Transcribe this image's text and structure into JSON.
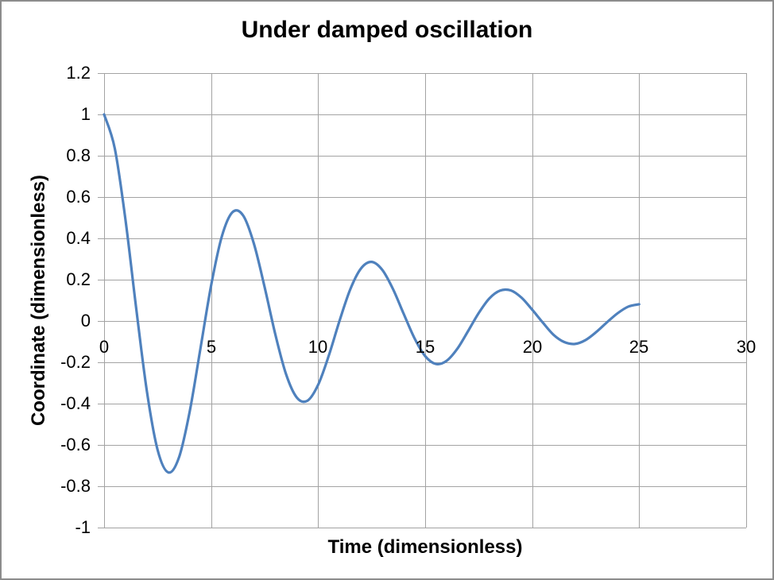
{
  "window": {
    "background": "#FFFFFF",
    "border_color": "#8C8C8C"
  },
  "chart_data": {
    "type": "line",
    "title": "Under damped oscillation",
    "xlabel": "Time (dimensionless)",
    "ylabel": "Coordinate (dimensionless)",
    "xlim": [
      0,
      30
    ],
    "ylim": [
      -1,
      1.2
    ],
    "x_ticks": [
      0,
      5,
      10,
      15,
      20,
      25,
      30
    ],
    "y_ticks": [
      1.2,
      1,
      0.8,
      0.6,
      0.4,
      0.2,
      0,
      -0.2,
      -0.4,
      -0.6,
      -0.8,
      -1
    ],
    "grid": true,
    "legend_position": "none",
    "gridline_color": "#A3A3A3",
    "axis_text_color": "#000000",
    "series": [
      {
        "color": "#4F81BD",
        "x": [
          0,
          0.5,
          1,
          1.5,
          2,
          2.5,
          3,
          3.5,
          4,
          4.5,
          5,
          5.5,
          6,
          6.5,
          7,
          7.5,
          8,
          8.5,
          9,
          9.5,
          10,
          10.5,
          11,
          11.5,
          12,
          12.5,
          13,
          13.5,
          14,
          14.5,
          15,
          15.5,
          16,
          16.5,
          17,
          17.5,
          18,
          18.5,
          19,
          19.5,
          20,
          20.5,
          21,
          21.5,
          22,
          22.5,
          23,
          23.5,
          24,
          24.5,
          25
        ],
        "y": [
          1,
          0.835,
          0.489,
          0.061,
          -0.341,
          -0.624,
          -0.733,
          -0.66,
          -0.438,
          -0.134,
          0.172,
          0.409,
          0.527,
          0.51,
          0.374,
          0.164,
          -0.065,
          -0.257,
          -0.37,
          -0.386,
          -0.309,
          -0.167,
          0.001,
          0.153,
          0.254,
          0.286,
          0.247,
          0.154,
          0.034,
          -0.083,
          -0.17,
          -0.208,
          -0.193,
          -0.135,
          -0.05,
          0.038,
          0.109,
          0.147,
          0.148,
          0.113,
          0.055,
          -0.008,
          -0.067,
          -0.102,
          -0.111,
          -0.092,
          -0.053,
          -0.006,
          0.038,
          0.07,
          0.081
        ]
      }
    ]
  }
}
